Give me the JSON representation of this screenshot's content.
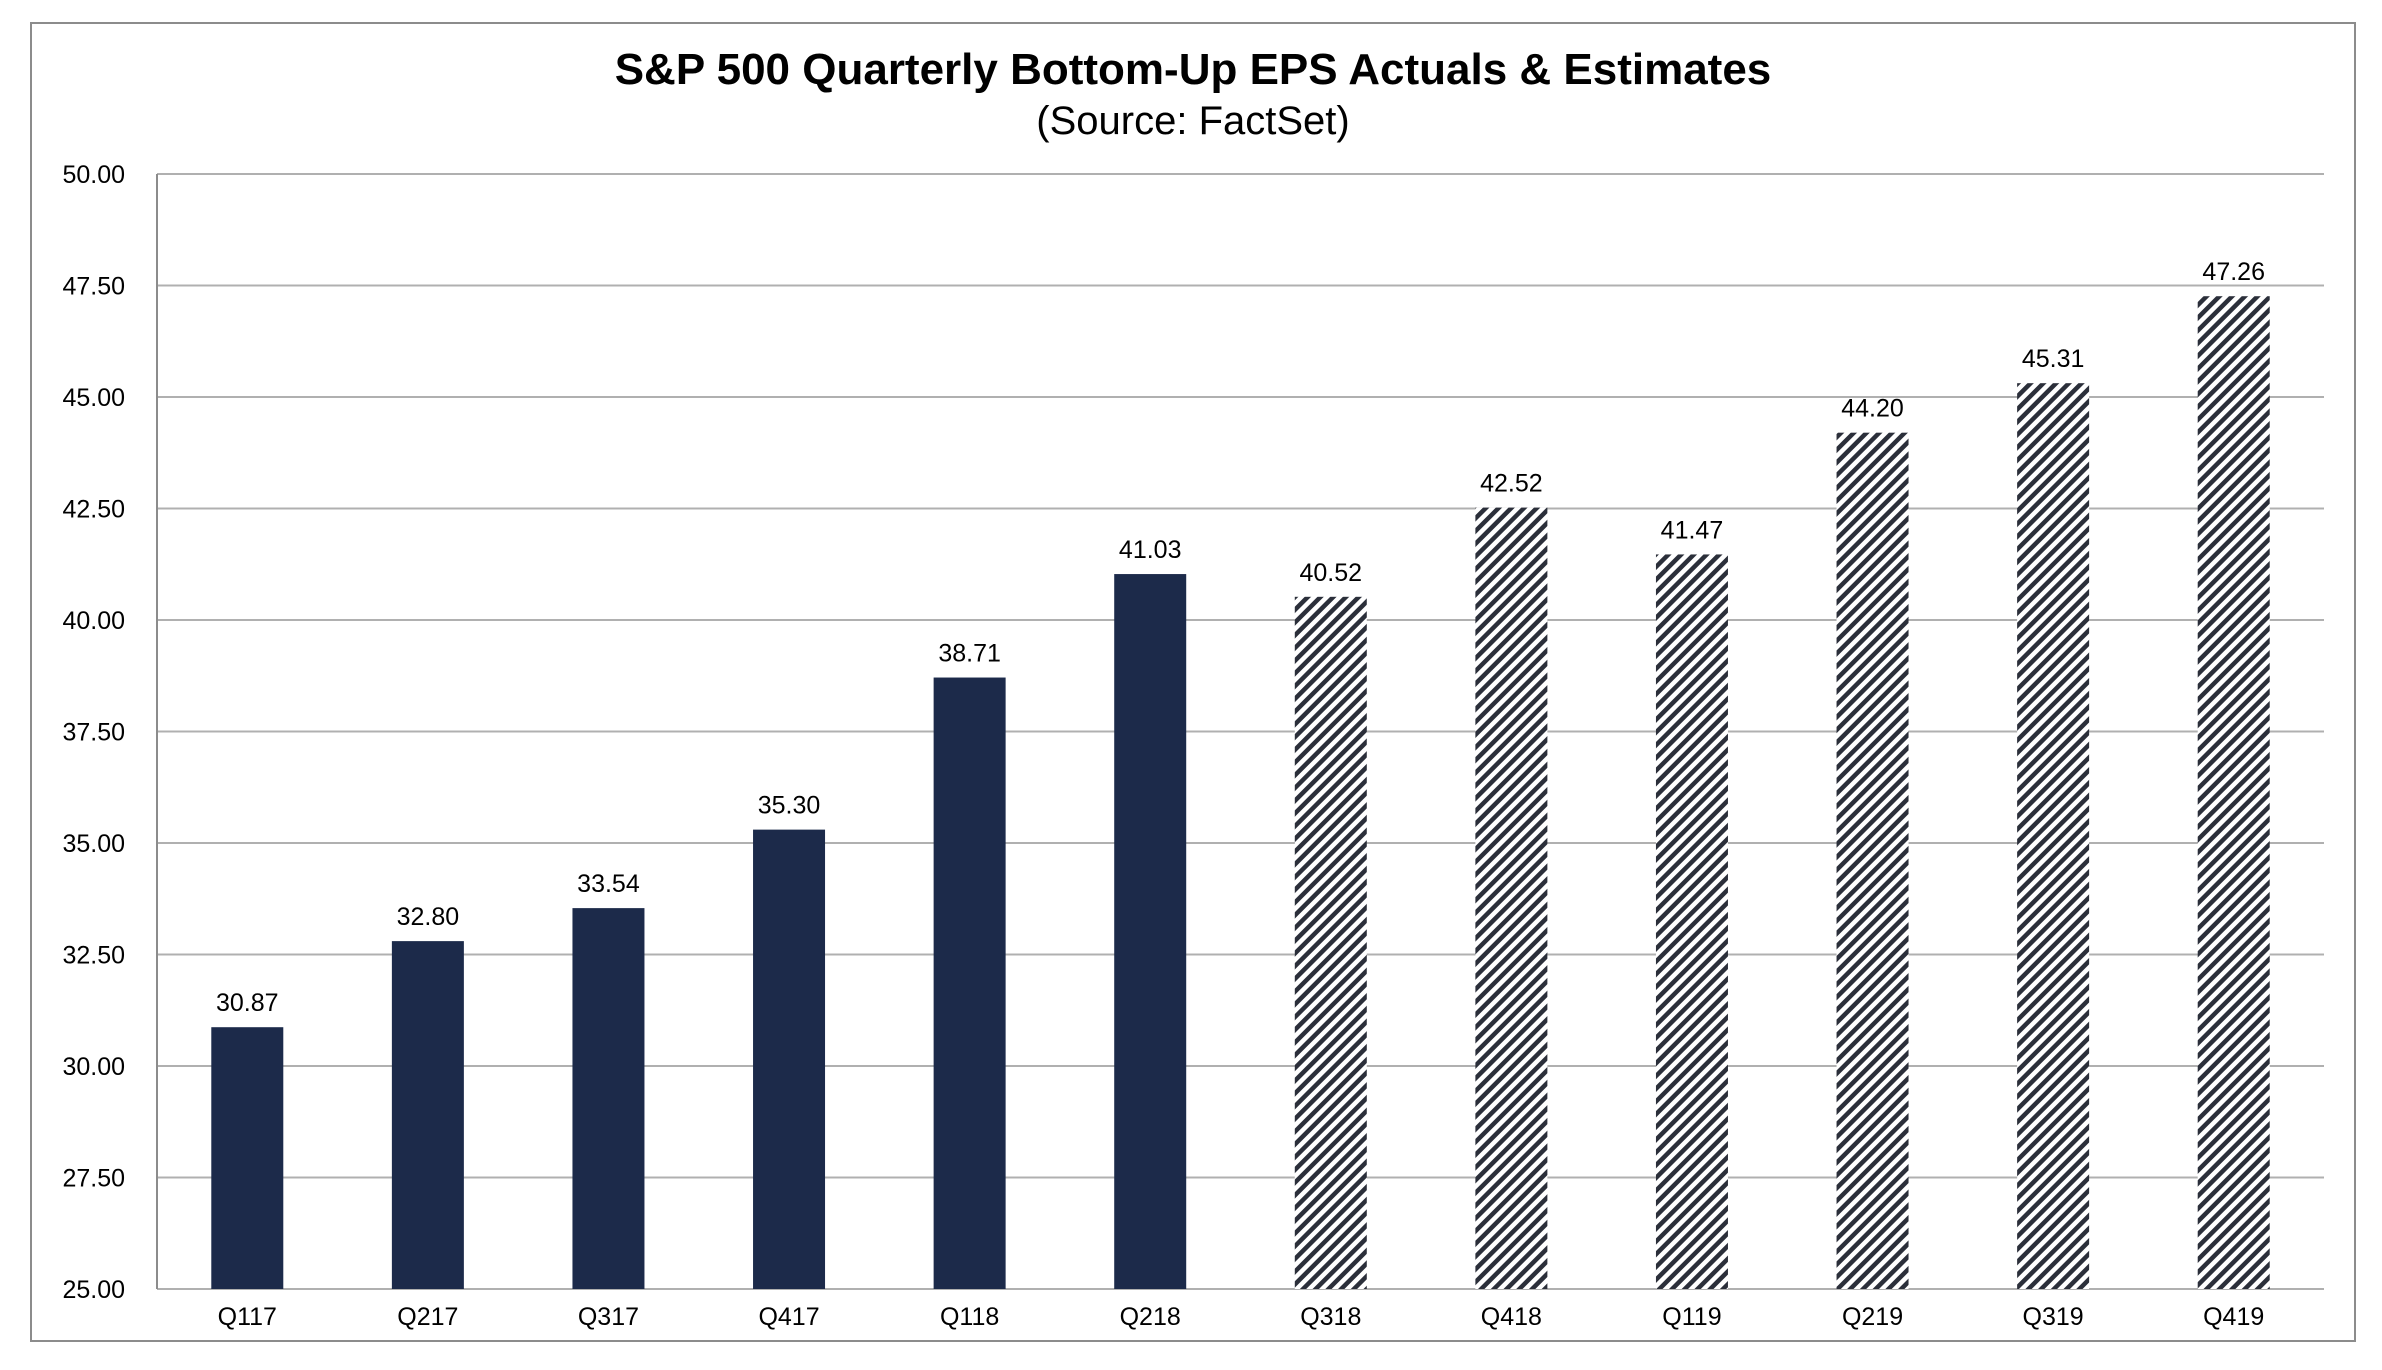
{
  "chart_data": {
    "type": "bar",
    "title": "S&P 500 Quarterly Bottom-Up EPS Actuals & Estimates",
    "subtitle": "(Source: FactSet)",
    "xlabel": "",
    "ylabel": "",
    "categories": [
      "Q117",
      "Q217",
      "Q317",
      "Q417",
      "Q118",
      "Q218",
      "Q318",
      "Q418",
      "Q119",
      "Q219",
      "Q319",
      "Q419"
    ],
    "values": [
      30.87,
      32.8,
      33.54,
      35.3,
      38.71,
      41.03,
      40.52,
      42.52,
      41.47,
      44.2,
      45.31,
      47.26
    ],
    "data_labels": [
      "30.87",
      "32.80",
      "33.54",
      "35.30",
      "38.71",
      "41.03",
      "40.52",
      "42.52",
      "41.47",
      "44.20",
      "45.31",
      "47.26"
    ],
    "bar_style": [
      "solid",
      "solid",
      "solid",
      "solid",
      "solid",
      "solid",
      "hatched",
      "hatched",
      "hatched",
      "hatched",
      "hatched",
      "hatched"
    ],
    "ylim": [
      25.0,
      50.0
    ],
    "yticks": [
      25.0,
      27.5,
      30.0,
      32.5,
      35.0,
      37.5,
      40.0,
      42.5,
      45.0,
      47.5,
      50.0
    ],
    "ytick_labels": [
      "25.00",
      "27.50",
      "30.00",
      "32.50",
      "35.00",
      "37.50",
      "40.00",
      "42.50",
      "45.00",
      "47.50",
      "50.00"
    ],
    "grid": true,
    "legend": "none",
    "colors": {
      "actual": "#1c2a4a",
      "estimate_stripe": "#2b2f3a",
      "grid": "#b0b0b0"
    }
  }
}
